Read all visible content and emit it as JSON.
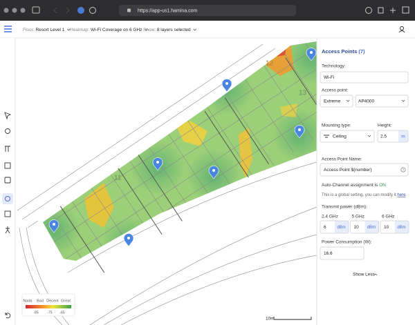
{
  "browser": {
    "url": "https://app-us1.hamina.com"
  },
  "header": {
    "floor_label": "Floor:",
    "floor": "Resort Level 1",
    "heatmap_label": "Heatmap:",
    "heatmap": "Wi-Fi Coverage on 6 GHz",
    "show_label": "Show:",
    "show": "8 layers selected"
  },
  "map": {
    "room_labels": [
      "12",
      "13",
      "11"
    ],
    "legend": {
      "labels": [
        "Nada",
        "Bad",
        "Decent",
        "Great"
      ],
      "ticks": [
        "-85",
        "-75",
        "-65"
      ]
    },
    "scale": "10m"
  },
  "panel": {
    "title": "Access Points",
    "count": "(7)",
    "technology_label": "Technology:",
    "technology": "Wi-Fi",
    "access_point_label": "Access point:",
    "vendor": "Extreme",
    "model": "AP4000",
    "mounting_label": "Mounting type:",
    "mounting": "Ceiling",
    "height_label": "Height:",
    "height": "2.5",
    "height_unit": "m",
    "name_label": "Access Point Name:",
    "name": "Access Point ${number}",
    "help": "?",
    "auto_channel_text": "Auto-Channel assignment is",
    "auto_channel_state": "ON",
    "global_text": "This is a global setting, you can modify it",
    "global_link": "here",
    "power_label": "Transmit power (dBm):",
    "bands": [
      {
        "label": "2.4 GHz",
        "value": "6",
        "unit": "dBm"
      },
      {
        "label": "5 GHz",
        "value": "10",
        "unit": "dBm"
      },
      {
        "label": "6 GHz",
        "value": "10",
        "unit": "dBm"
      }
    ],
    "consumption_label": "Power Consumption (W):",
    "consumption": "16.6",
    "show_less": "Show Less"
  }
}
